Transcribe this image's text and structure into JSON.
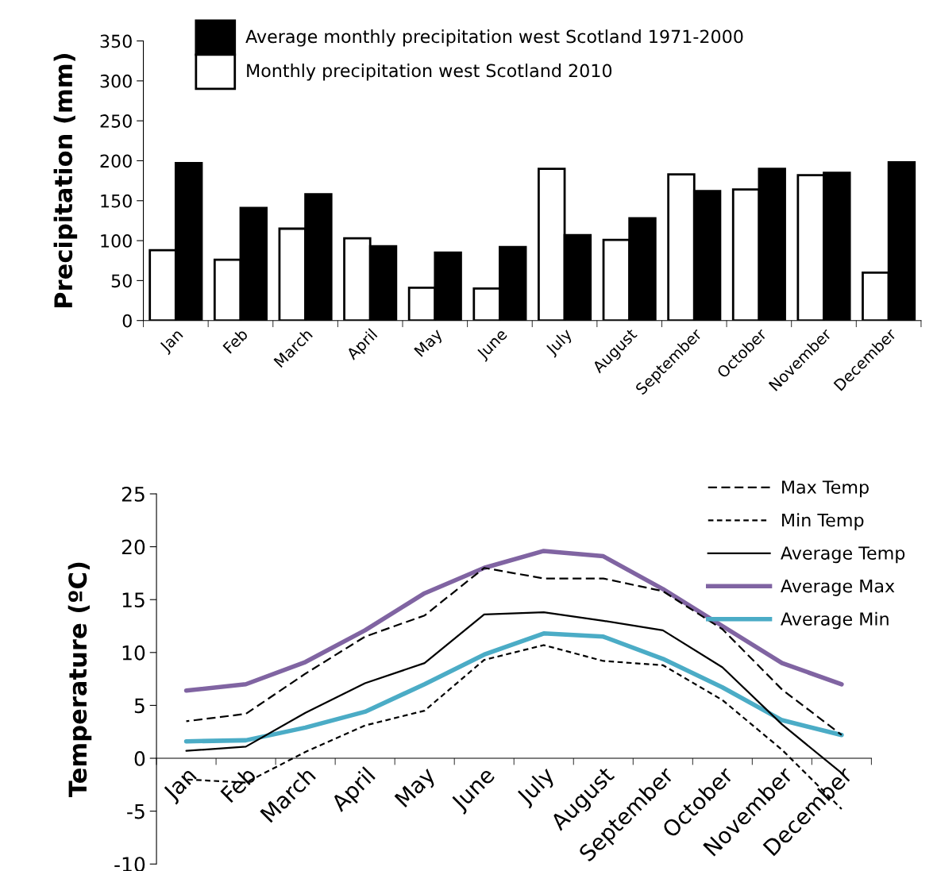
{
  "chart_data": [
    {
      "type": "bar",
      "ylabel": "Precipitation (mm)",
      "categories": [
        "Jan",
        "Feb",
        "March",
        "April",
        "May",
        "June",
        "July",
        "August",
        "September",
        "October",
        "November",
        "December"
      ],
      "series": [
        {
          "name": "Monthly precipitation west Scotland 2010",
          "color": "#ffffff",
          "values": [
            88,
            76,
            115,
            103,
            41,
            40,
            190,
            101,
            183,
            164,
            182,
            60
          ]
        },
        {
          "name": "Average monthly precipitation west Scotland 1971-2000",
          "color": "#000000",
          "values": [
            197,
            141,
            158,
            93,
            85,
            92,
            107,
            128,
            162,
            190,
            185,
            198
          ]
        }
      ],
      "ylim": [
        0,
        350
      ],
      "yticks": [
        0,
        50,
        100,
        150,
        200,
        250,
        300,
        350
      ],
      "legend": "top",
      "grid": false
    },
    {
      "type": "line",
      "ylabel": "Temperature (ºC)",
      "categories": [
        "Jan",
        "Feb",
        "March",
        "April",
        "May",
        "June",
        "July",
        "August",
        "September",
        "October",
        "November",
        "December"
      ],
      "series": [
        {
          "name": "Max Temp",
          "color": "#000000",
          "line_style": "dashed",
          "values": [
            3.5,
            4.2,
            8.0,
            11.5,
            13.5,
            18.0,
            17.0,
            17.0,
            15.8,
            12.2,
            6.5,
            2.2
          ]
        },
        {
          "name": "Min Temp",
          "color": "#000000",
          "line_style": "dotted",
          "values": [
            -2.0,
            -2.3,
            0.6,
            3.1,
            4.5,
            9.3,
            10.7,
            9.2,
            8.8,
            5.5,
            0.8,
            -4.8
          ]
        },
        {
          "name": "Average Temp",
          "color": "#000000",
          "line_style": "solid",
          "values": [
            0.7,
            1.1,
            4.3,
            7.1,
            9.0,
            13.6,
            13.8,
            13.0,
            12.1,
            8.6,
            3.2,
            -1.4
          ]
        },
        {
          "name": "Average Max",
          "color": "#8064a2",
          "values": [
            6.4,
            7.0,
            9.1,
            12.1,
            15.6,
            18.0,
            19.6,
            19.1,
            16.0,
            12.5,
            9.0,
            7.0
          ]
        },
        {
          "name": "Average Min",
          "color": "#4bacc6",
          "values": [
            1.6,
            1.7,
            2.9,
            4.4,
            7.0,
            9.8,
            11.8,
            11.5,
            9.4,
            6.7,
            3.6,
            2.2
          ]
        }
      ],
      "ylim": [
        -10,
        25
      ],
      "yticks": [
        -10,
        -5,
        0,
        5,
        10,
        15,
        20,
        25
      ],
      "legend": "top right",
      "line_style": "solid",
      "marker": "none",
      "grid": false
    }
  ]
}
